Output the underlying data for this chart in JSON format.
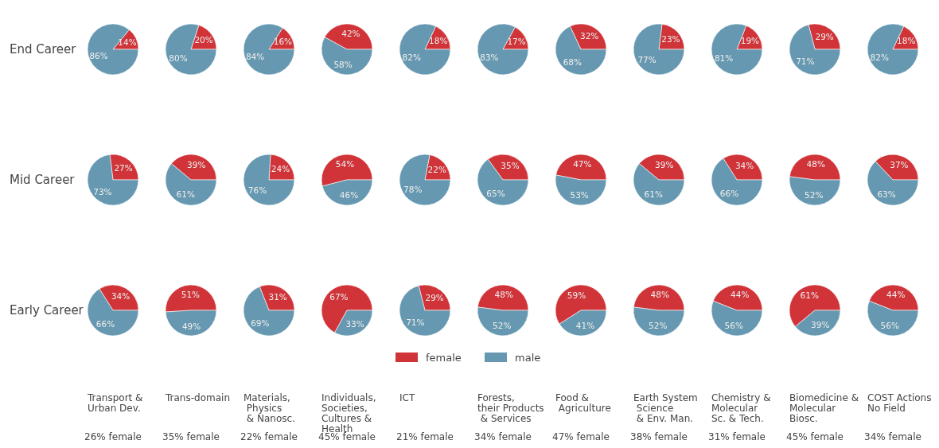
{
  "chart_data": [
    {
      "type": "pie",
      "ylabel": "End Career",
      "values": [
        14,
        86
      ],
      "value_labels": [
        "14%",
        "86%"
      ],
      "colors": [
        "#d13438",
        "#6699b1"
      ]
    },
    {
      "type": "pie",
      "values": [
        20,
        80
      ],
      "value_labels": [
        "20%",
        "80%"
      ],
      "colors": [
        "#d13438",
        "#6699b1"
      ]
    },
    {
      "type": "pie",
      "values": [
        16,
        84
      ],
      "value_labels": [
        "16%",
        "84%"
      ],
      "colors": [
        "#d13438",
        "#6699b1"
      ]
    },
    {
      "type": "pie",
      "values": [
        42,
        58
      ],
      "value_labels": [
        "42%",
        "58%"
      ],
      "colors": [
        "#d13438",
        "#6699b1"
      ]
    },
    {
      "type": "pie",
      "values": [
        18,
        82
      ],
      "value_labels": [
        "18%",
        "82%"
      ],
      "colors": [
        "#d13438",
        "#6699b1"
      ]
    },
    {
      "type": "pie",
      "values": [
        17,
        83
      ],
      "value_labels": [
        "17%",
        "83%"
      ],
      "colors": [
        "#d13438",
        "#6699b1"
      ]
    },
    {
      "type": "pie",
      "values": [
        32,
        68
      ],
      "value_labels": [
        "32%",
        "68%"
      ],
      "colors": [
        "#d13438",
        "#6699b1"
      ]
    },
    {
      "type": "pie",
      "values": [
        23,
        77
      ],
      "value_labels": [
        "23%",
        "77%"
      ],
      "colors": [
        "#d13438",
        "#6699b1"
      ]
    },
    {
      "type": "pie",
      "values": [
        19,
        81
      ],
      "value_labels": [
        "19%",
        "81%"
      ],
      "colors": [
        "#d13438",
        "#6699b1"
      ]
    },
    {
      "type": "pie",
      "values": [
        29,
        71
      ],
      "value_labels": [
        "29%",
        "71%"
      ],
      "colors": [
        "#d13438",
        "#6699b1"
      ]
    },
    {
      "type": "pie",
      "values": [
        18,
        82
      ],
      "value_labels": [
        "18%",
        "82%"
      ],
      "colors": [
        "#d13438",
        "#6699b1"
      ]
    },
    {
      "type": "pie",
      "ylabel": "Mid Career",
      "values": [
        27,
        73
      ],
      "value_labels": [
        "27%",
        "73%"
      ],
      "colors": [
        "#d13438",
        "#6699b1"
      ]
    },
    {
      "type": "pie",
      "values": [
        39,
        61
      ],
      "value_labels": [
        "39%",
        "61%"
      ],
      "colors": [
        "#d13438",
        "#6699b1"
      ]
    },
    {
      "type": "pie",
      "values": [
        24,
        76
      ],
      "value_labels": [
        "24%",
        "76%"
      ],
      "colors": [
        "#d13438",
        "#6699b1"
      ]
    },
    {
      "type": "pie",
      "values": [
        54,
        46
      ],
      "value_labels": [
        "54%",
        "46%"
      ],
      "colors": [
        "#d13438",
        "#6699b1"
      ]
    },
    {
      "type": "pie",
      "values": [
        22,
        78
      ],
      "value_labels": [
        "22%",
        "78%"
      ],
      "colors": [
        "#d13438",
        "#6699b1"
      ]
    },
    {
      "type": "pie",
      "values": [
        35,
        65
      ],
      "value_labels": [
        "35%",
        "65%"
      ],
      "colors": [
        "#d13438",
        "#6699b1"
      ]
    },
    {
      "type": "pie",
      "values": [
        47,
        53
      ],
      "value_labels": [
        "47%",
        "53%"
      ],
      "colors": [
        "#d13438",
        "#6699b1"
      ]
    },
    {
      "type": "pie",
      "values": [
        39,
        61
      ],
      "value_labels": [
        "39%",
        "61%"
      ],
      "colors": [
        "#d13438",
        "#6699b1"
      ]
    },
    {
      "type": "pie",
      "values": [
        34,
        66
      ],
      "value_labels": [
        "34%",
        "66%"
      ],
      "colors": [
        "#d13438",
        "#6699b1"
      ]
    },
    {
      "type": "pie",
      "values": [
        48,
        52
      ],
      "value_labels": [
        "48%",
        "52%"
      ],
      "colors": [
        "#d13438",
        "#6699b1"
      ]
    },
    {
      "type": "pie",
      "values": [
        37,
        63
      ],
      "value_labels": [
        "37%",
        "63%"
      ],
      "colors": [
        "#d13438",
        "#6699b1"
      ]
    },
    {
      "type": "pie",
      "ylabel": "Early Career",
      "xlabel": "Transport &\nUrban Dev.",
      "annotations": [
        "26% female"
      ],
      "values": [
        34,
        66
      ],
      "value_labels": [
        "34%",
        "66%"
      ],
      "colors": [
        "#d13438",
        "#6699b1"
      ]
    },
    {
      "type": "pie",
      "xlabel": "Trans-domain",
      "annotations": [
        "35% female"
      ],
      "values": [
        51,
        49
      ],
      "value_labels": [
        "51%",
        "49%"
      ],
      "colors": [
        "#d13438",
        "#6699b1"
      ]
    },
    {
      "type": "pie",
      "xlabel": "Materials,\n Physics\n & Nanosc.",
      "annotations": [
        "22% female"
      ],
      "values": [
        31,
        69
      ],
      "value_labels": [
        "31%",
        "69%"
      ],
      "colors": [
        "#d13438",
        "#6699b1"
      ]
    },
    {
      "type": "pie",
      "xlabel": "Individuals,\nSocieties,\nCultures &\nHealth",
      "annotations": [
        "45% female"
      ],
      "values": [
        67,
        33
      ],
      "value_labels": [
        "67%",
        "33%"
      ],
      "colors": [
        "#d13438",
        "#6699b1"
      ]
    },
    {
      "type": "pie",
      "xlabel": "ICT",
      "annotations": [
        "21% female"
      ],
      "values": [
        29,
        71
      ],
      "value_labels": [
        "29%",
        "71%"
      ],
      "colors": [
        "#d13438",
        "#6699b1"
      ]
    },
    {
      "type": "pie",
      "xlabel": "Forests,\ntheir Products\n & Services",
      "annotations": [
        "34% female"
      ],
      "legend": "bottom",
      "categories": [
        "female",
        "male"
      ],
      "values": [
        48,
        52
      ],
      "value_labels": [
        "48%",
        "52%"
      ],
      "colors": [
        "#d13438",
        "#6699b1"
      ]
    },
    {
      "type": "pie",
      "xlabel": "Food &\n Agriculture",
      "annotations": [
        "47% female"
      ],
      "values": [
        59,
        41
      ],
      "value_labels": [
        "59%",
        "41%"
      ],
      "colors": [
        "#d13438",
        "#6699b1"
      ]
    },
    {
      "type": "pie",
      "xlabel": "Earth System\n Science\n & Env. Man.",
      "annotations": [
        "38% female"
      ],
      "values": [
        48,
        52
      ],
      "value_labels": [
        "48%",
        "52%"
      ],
      "colors": [
        "#d13438",
        "#6699b1"
      ]
    },
    {
      "type": "pie",
      "xlabel": "Chemistry &\nMolecular\nSc. & Tech.",
      "annotations": [
        "31% female"
      ],
      "values": [
        44,
        56
      ],
      "value_labels": [
        "44%",
        "56%"
      ],
      "colors": [
        "#d13438",
        "#6699b1"
      ]
    },
    {
      "type": "pie",
      "xlabel": "Biomedicine &\nMolecular\nBiosc.",
      "annotations": [
        "45% female"
      ],
      "values": [
        61,
        39
      ],
      "value_labels": [
        "61%",
        "39%"
      ],
      "colors": [
        "#d13438",
        "#6699b1"
      ]
    },
    {
      "type": "pie",
      "xlabel": "COST Actions\nNo Field",
      "annotations": [
        "34% female"
      ],
      "values": [
        44,
        56
      ],
      "value_labels": [
        "44%",
        "56%"
      ],
      "colors": [
        "#d13438",
        "#6699b1"
      ]
    }
  ]
}
